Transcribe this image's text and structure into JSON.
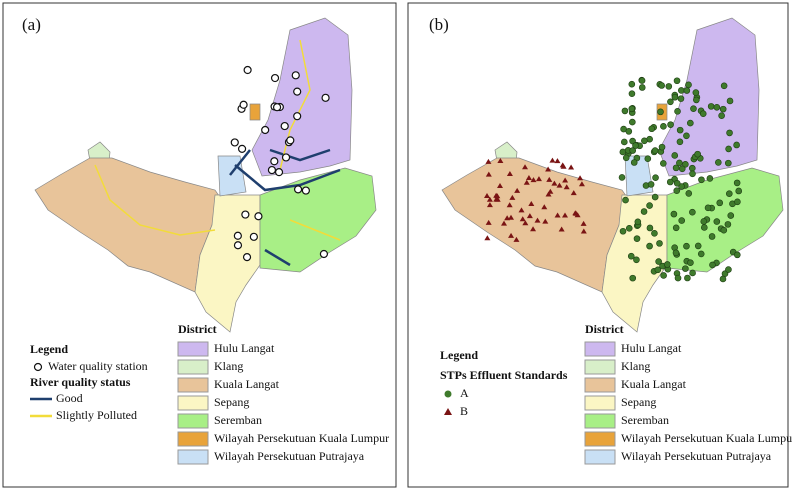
{
  "panels": [
    {
      "label": "(a)",
      "legend": {
        "title": "Legend",
        "items": [
          {
            "label": "Water quality station"
          }
        ],
        "subtitle": "River quality status",
        "rivers": [
          {
            "label": "Good",
            "color": "#1f3f6e"
          },
          {
            "label": "Slightly Polluted",
            "color": "#f2dc3a"
          }
        ]
      },
      "districts": {
        "title": "District",
        "items": [
          {
            "name": "Hulu Langat",
            "color": "#cdb8ef"
          },
          {
            "name": "Klang",
            "color": "#d8efc9"
          },
          {
            "name": "Kuala Langat",
            "color": "#e8c49a"
          },
          {
            "name": "Sepang",
            "color": "#fbf6c4"
          },
          {
            "name": "Seremban",
            "color": "#a8ef86"
          },
          {
            "name": "Wilayah Persekutuan Kuala Lumpur",
            "color": "#e8a33a"
          },
          {
            "name": "Wilayah Persekutuan Putrajaya",
            "color": "#c9e0f5"
          }
        ]
      }
    },
    {
      "label": "(b)",
      "legend": {
        "title": "Legend",
        "subtitle": "STPs Effluent Standards",
        "items": [
          {
            "label": "A",
            "color": "#3f7a2c"
          },
          {
            "label": "B",
            "color": "#7a1414"
          }
        ]
      },
      "districts": {
        "title": "District",
        "items": [
          {
            "name": "Hulu Langat",
            "color": "#cdb8ef"
          },
          {
            "name": "Klang",
            "color": "#d8efc9"
          },
          {
            "name": "Kuala Langat",
            "color": "#e8c49a"
          },
          {
            "name": "Sepang",
            "color": "#fbf6c4"
          },
          {
            "name": "Seremban",
            "color": "#a8ef86"
          },
          {
            "name": "Wilayah Persekutuan Kuala Lumpur",
            "color": "#e8a33a"
          },
          {
            "name": "Wilayah Persekutuan Putrajaya",
            "color": "#c9e0f5"
          }
        ]
      }
    }
  ]
}
